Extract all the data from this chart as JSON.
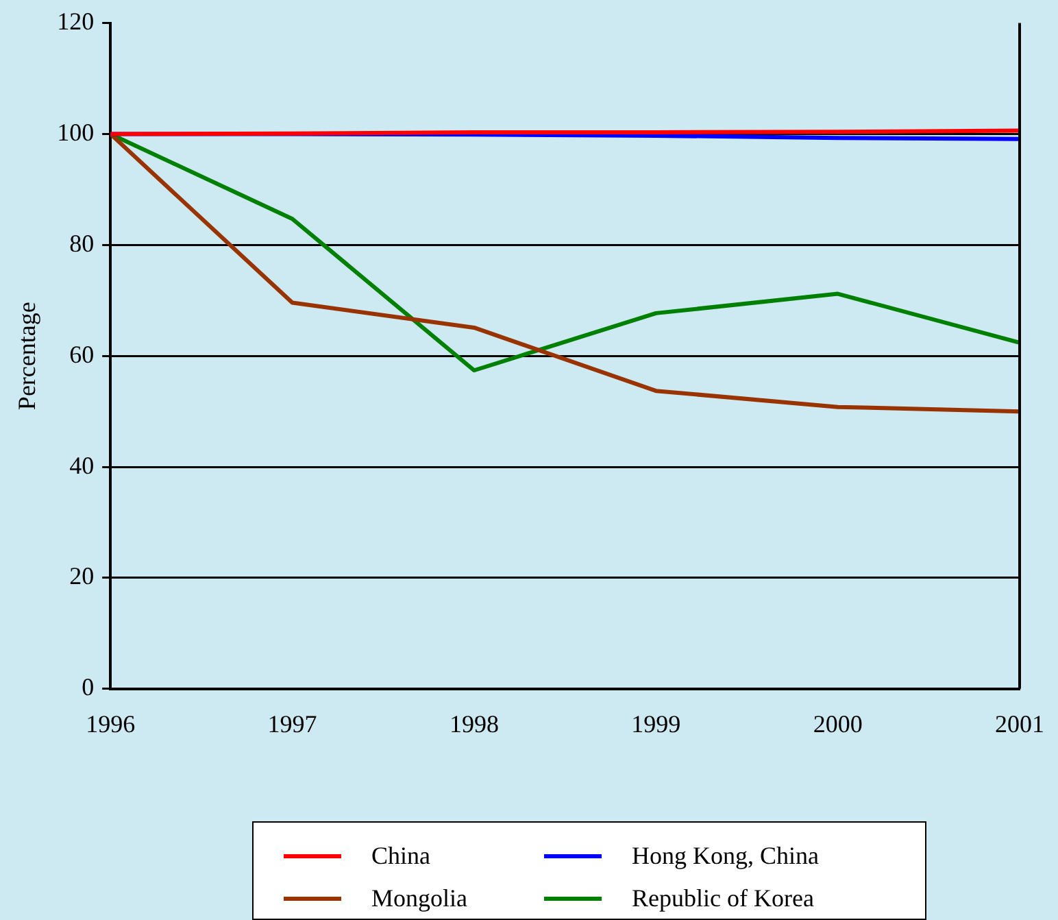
{
  "chart_data": {
    "type": "line",
    "ylabel": "Percentage",
    "x": [
      1996,
      1997,
      1998,
      1999,
      2000,
      2001
    ],
    "xlim": [
      1996,
      2001
    ],
    "xticks": [
      1996,
      1997,
      1998,
      1999,
      2000,
      2001
    ],
    "ylim": [
      0,
      120
    ],
    "yticks": [
      0,
      20,
      40,
      60,
      80,
      100,
      120
    ],
    "grid": "y",
    "legend": "bottom",
    "marker": "none",
    "line_style": "solid",
    "series": [
      {
        "name": "China",
        "color": "#ff0000",
        "values": [
          100,
          100.1,
          100.3,
          100.3,
          100.4,
          100.6
        ]
      },
      {
        "name": "Hong Kong, China",
        "color": "#0000ff",
        "values": [
          100,
          100,
          99.9,
          99.7,
          99.3,
          99.1
        ]
      },
      {
        "name": "Mongolia",
        "color": "#993300",
        "values": [
          100,
          69.6,
          65.1,
          53.7,
          50.8,
          50.0
        ]
      },
      {
        "name": "Republic of Korea",
        "color": "#008000",
        "values": [
          100,
          84.7,
          57.4,
          67.7,
          71.2,
          62.4
        ]
      }
    ]
  }
}
